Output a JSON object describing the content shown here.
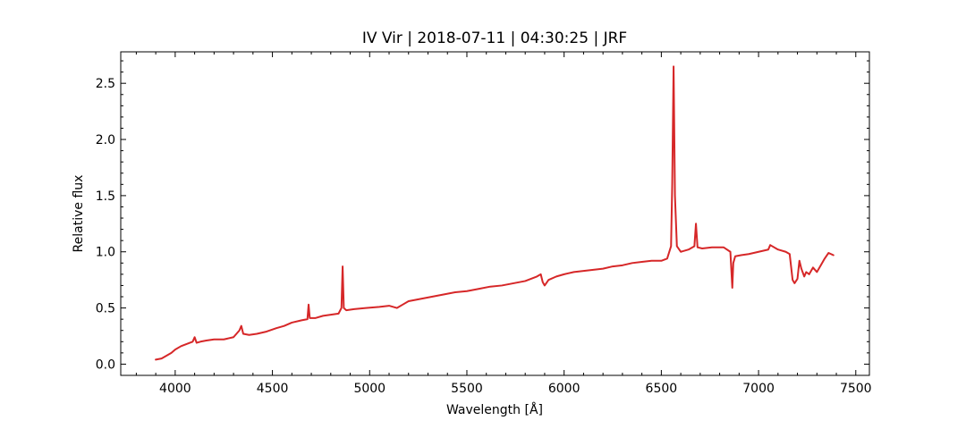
{
  "chart_data": {
    "type": "line",
    "title": "IV Vir | 2018-07-11 | 04:30:25 | JRF",
    "xlabel": "Wavelength [Å]",
    "ylabel": "Relative flux",
    "xlim": [
      3720,
      7570
    ],
    "ylim": [
      -0.1,
      2.78
    ],
    "xticks": [
      4000,
      4500,
      5000,
      5500,
      6000,
      6500,
      7000,
      7500
    ],
    "xtick_labels": [
      "4000",
      "4500",
      "5000",
      "5500",
      "6000",
      "6500",
      "7000",
      "7500"
    ],
    "yticks": [
      0.0,
      0.5,
      1.0,
      1.5,
      2.0,
      2.5
    ],
    "ytick_labels": [
      "0.0",
      "0.5",
      "1.0",
      "1.5",
      "2.0",
      "2.5"
    ],
    "grid": false,
    "line_color": "#d62728",
    "series": [
      {
        "x": [
          3900,
          3930,
          3960,
          3980,
          4000,
          4030,
          4060,
          4090,
          4100,
          4110,
          4130,
          4160,
          4200,
          4250,
          4300,
          4330,
          4340,
          4350,
          4380,
          4420,
          4470,
          4520,
          4560,
          4600,
          4650,
          4680,
          4686,
          4692,
          4720,
          4760,
          4800,
          4840,
          4855,
          4861,
          4867,
          4880,
          4920,
          4980,
          5050,
          5100,
          5140,
          5170,
          5200,
          5260,
          5320,
          5380,
          5440,
          5500,
          5560,
          5620,
          5680,
          5740,
          5800,
          5860,
          5880,
          5890,
          5900,
          5920,
          5960,
          6000,
          6050,
          6100,
          6150,
          6200,
          6250,
          6300,
          6350,
          6400,
          6450,
          6500,
          6530,
          6550,
          6556,
          6563,
          6570,
          6580,
          6600,
          6640,
          6670,
          6678,
          6686,
          6710,
          6760,
          6820,
          6855,
          6865,
          6870,
          6880,
          6910,
          6950,
          7000,
          7050,
          7060,
          7100,
          7140,
          7160,
          7175,
          7185,
          7200,
          7210,
          7220,
          7235,
          7245,
          7260,
          7280,
          7300,
          7320,
          7340,
          7360,
          7385
        ],
        "y": [
          0.04,
          0.05,
          0.08,
          0.1,
          0.13,
          0.16,
          0.18,
          0.2,
          0.24,
          0.19,
          0.2,
          0.21,
          0.22,
          0.22,
          0.24,
          0.3,
          0.34,
          0.27,
          0.26,
          0.27,
          0.29,
          0.32,
          0.34,
          0.37,
          0.39,
          0.4,
          0.53,
          0.41,
          0.41,
          0.43,
          0.44,
          0.45,
          0.5,
          0.87,
          0.5,
          0.48,
          0.49,
          0.5,
          0.51,
          0.52,
          0.5,
          0.53,
          0.56,
          0.58,
          0.6,
          0.62,
          0.64,
          0.65,
          0.67,
          0.69,
          0.7,
          0.72,
          0.74,
          0.78,
          0.8,
          0.73,
          0.7,
          0.75,
          0.78,
          0.8,
          0.82,
          0.83,
          0.84,
          0.85,
          0.87,
          0.88,
          0.9,
          0.91,
          0.92,
          0.92,
          0.94,
          1.05,
          1.6,
          2.65,
          1.5,
          1.05,
          1.0,
          1.02,
          1.05,
          1.25,
          1.04,
          1.03,
          1.04,
          1.04,
          1.0,
          0.68,
          0.9,
          0.96,
          0.97,
          0.98,
          1.0,
          1.02,
          1.06,
          1.02,
          1.0,
          0.98,
          0.75,
          0.72,
          0.76,
          0.92,
          0.85,
          0.78,
          0.82,
          0.8,
          0.86,
          0.82,
          0.88,
          0.94,
          0.99,
          0.97
        ]
      }
    ]
  }
}
